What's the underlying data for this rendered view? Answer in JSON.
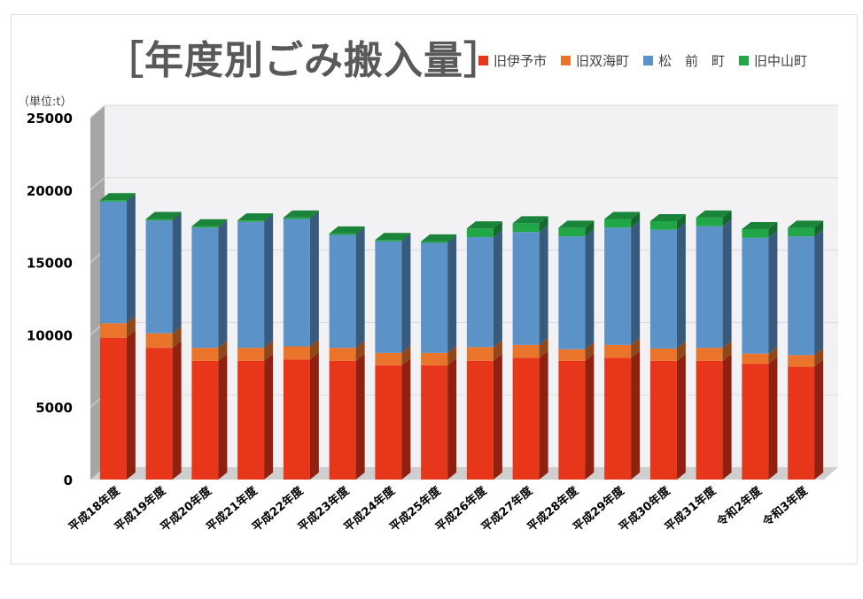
{
  "chart_data": {
    "type": "bar",
    "stacked": true,
    "three_d": true,
    "title": "［年度別ごみ搬入量］",
    "unit_label": "（単位:t）",
    "categories": [
      "平成18年度",
      "平成19年度",
      "平成20年度",
      "平成21年度",
      "平成22年度",
      "平成23年度",
      "平成24年度",
      "平成25年度",
      "平成26年度",
      "平成27年度",
      "平成28年度",
      "平成29年度",
      "平成30年度",
      "平成31年度",
      "令和2年度",
      "令和3年度"
    ],
    "series": [
      {
        "name": "旧伊予市",
        "color": "#e8361a",
        "values": [
          9800,
          9100,
          8200,
          8200,
          8300,
          8200,
          7900,
          7900,
          8200,
          8400,
          8200,
          8400,
          8200,
          8200,
          8000,
          7800
        ]
      },
      {
        "name": "旧双海町",
        "color": "#e9742a",
        "values": [
          1000,
          1000,
          900,
          900,
          900,
          900,
          850,
          850,
          950,
          900,
          800,
          900,
          850,
          900,
          700,
          800
        ]
      },
      {
        "name": "松　前　町",
        "color": "#5b93c9",
        "values": [
          8400,
          7800,
          8300,
          8700,
          8800,
          7800,
          7700,
          7600,
          7600,
          7800,
          7800,
          8100,
          8200,
          8400,
          8000,
          8200
        ]
      },
      {
        "name": "旧中山町",
        "color": "#21a648",
        "values": [
          100,
          100,
          100,
          100,
          100,
          100,
          100,
          100,
          600,
          600,
          600,
          600,
          600,
          600,
          600,
          600
        ]
      }
    ],
    "ylim": [
      0,
      25000
    ],
    "yticks": [
      "0",
      "5000",
      "10000",
      "15000",
      "20000",
      "25000"
    ],
    "grid": true,
    "legend_position": "top-right"
  }
}
